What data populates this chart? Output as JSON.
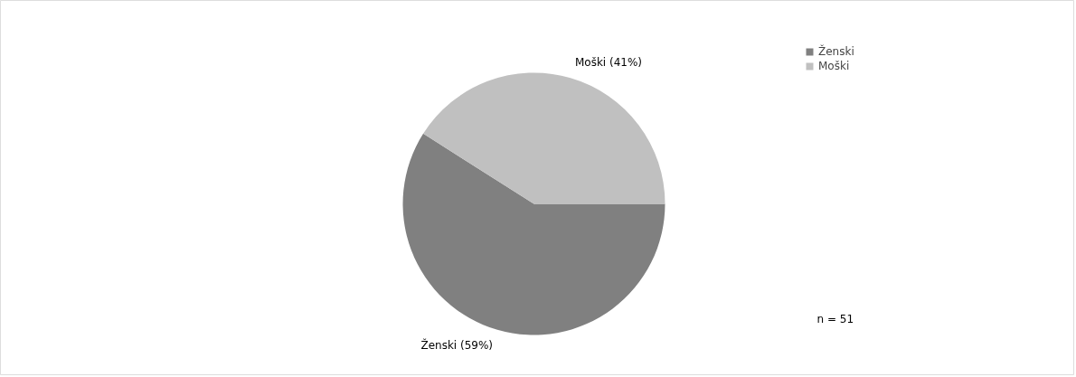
{
  "chart_data": {
    "type": "pie",
    "categories": [
      "Ženski",
      "Moški"
    ],
    "values": [
      59,
      41
    ],
    "colors": [
      "#808080",
      "#c0c0c0"
    ],
    "value_labels": [
      "Ženski (59%)",
      "Moški (41%)"
    ],
    "legend": "right",
    "annotations": [
      "n = 51"
    ]
  }
}
